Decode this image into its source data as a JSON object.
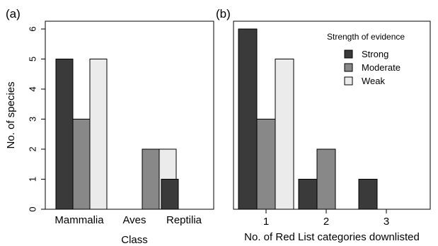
{
  "ylabel": "No. of species",
  "colors": {
    "Strong": "#3a3a3a",
    "Moderate": "#888888",
    "Weak": "#ebebeb",
    "stroke": "#000000"
  },
  "chart_data": [
    {
      "type": "bar",
      "panel_label": "(a)",
      "xlabel": "Class",
      "ylabel": "No. of species",
      "ylim": [
        0,
        6
      ],
      "yticks": [
        0,
        1,
        2,
        3,
        4,
        5,
        6
      ],
      "categories": [
        "Mammalia",
        "Aves",
        "Reptilia"
      ],
      "series": [
        {
          "name": "Strong",
          "values": [
            5,
            0,
            1
          ]
        },
        {
          "name": "Moderate",
          "values": [
            3,
            2,
            0
          ]
        },
        {
          "name": "Weak",
          "values": [
            5,
            2,
            0
          ]
        }
      ],
      "grid": false
    },
    {
      "type": "bar",
      "panel_label": "(b)",
      "xlabel": "No. of Red List categories downlisted",
      "ylim": [
        0,
        6
      ],
      "categories": [
        "1",
        "2",
        "3"
      ],
      "series": [
        {
          "name": "Strong",
          "values": [
            6,
            1,
            1
          ]
        },
        {
          "name": "Moderate",
          "values": [
            3,
            2,
            0
          ]
        },
        {
          "name": "Weak",
          "values": [
            5,
            0,
            0
          ]
        }
      ],
      "legend": {
        "title": "Strength of evidence",
        "entries": [
          "Strong",
          "Moderate",
          "Weak"
        ],
        "placement": "top-right"
      },
      "grid": false
    }
  ]
}
